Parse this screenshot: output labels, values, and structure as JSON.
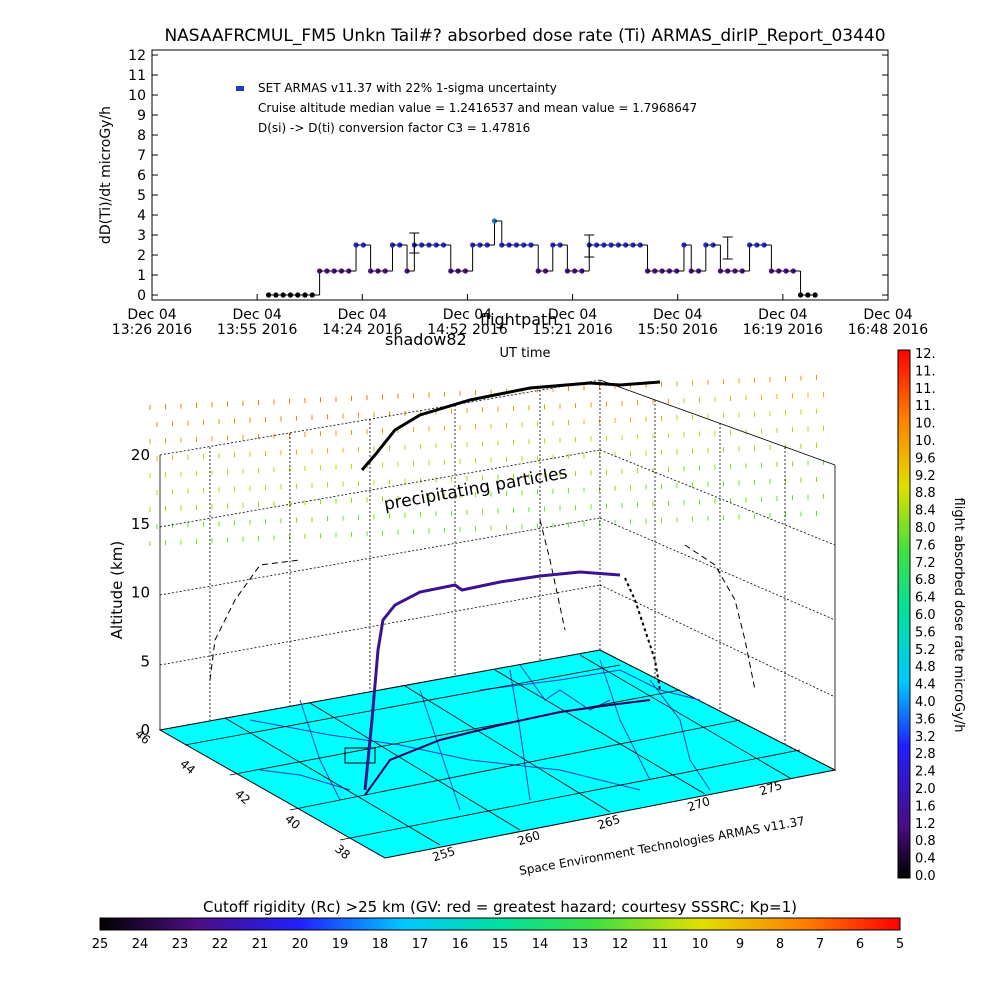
{
  "title": "NASAAFRCMUL_FM5 Unkn Tail#? absorbed dose rate (Ti) ARMAS_dirIP_Report_03440",
  "top_panel": {
    "ylabel": "dD(Ti)/dt microGy/h",
    "xlabel": "UT time",
    "legend": "SET ARMAS v11.37 with 22% 1-sigma uncertainty",
    "note1": "Cruise altitude median value = 1.2416537 and mean value = 1.7968647",
    "note2": "D(si) -> D(ti) conversion factor C3 = 1.47816",
    "overlay_text1": "flightpath",
    "overlay_text2": "shadow82"
  },
  "bottom_panel": {
    "ylabel": "Altitude (km)",
    "precip_label": "precipitating particles",
    "credit": "Space Environment Technologies ARMAS v11.37",
    "cbar_label": "flight absorbed dose rate microGy/h",
    "rc_label": "Cutoff rigidity (Rc) >25 km (GV: red = greatest hazard; courtesy SSSRC; Kp=1)"
  },
  "colors": {
    "points": "#4b0d82",
    "highlight": "#1e78c8",
    "map": "#00ffff"
  },
  "chart_data": [
    {
      "type": "scatter",
      "title": "NASAAFRCMUL_FM5 Unkn Tail#? absorbed dose rate (Ti) ARMAS_dirIP_Report_03440",
      "xlabel": "UT time",
      "ylabel": "dD(Ti)/dt microGy/h",
      "ylim": [
        0,
        12
      ],
      "yticks": [
        0,
        1,
        2,
        3,
        4,
        5,
        6,
        7,
        8,
        9,
        10,
        11,
        12
      ],
      "xticks": [
        {
          "line1": "Dec 04",
          "line2": "13:26 2016"
        },
        {
          "line1": "Dec 04",
          "line2": "13:55 2016"
        },
        {
          "line1": "Dec 04",
          "line2": "14:24 2016"
        },
        {
          "line1": "Dec 04",
          "line2": "14:52 2016"
        },
        {
          "line1": "Dec 04",
          "line2": "15:21 2016"
        },
        {
          "line1": "Dec 04",
          "line2": "15:50 2016"
        },
        {
          "line1": "Dec 04",
          "line2": "16:19 2016"
        },
        {
          "line1": "Dec 04",
          "line2": "16:48 2016"
        }
      ],
      "xlim_minutes": [
        0,
        202
      ],
      "series": [
        {
          "x_minutes": [
            32,
            34,
            36,
            38,
            40,
            42,
            44,
            46,
            48,
            50,
            52,
            54,
            56,
            58,
            60,
            62,
            64,
            66,
            68,
            70,
            72,
            74,
            76,
            78,
            80,
            82,
            84,
            86,
            88,
            90,
            92,
            94,
            96,
            98,
            100,
            102,
            104,
            106,
            108,
            110,
            112,
            114,
            116,
            118,
            120,
            122,
            124,
            126,
            128,
            130,
            132,
            134,
            136,
            138,
            140,
            142,
            144,
            146,
            148,
            150,
            152,
            154,
            156,
            158,
            160,
            162,
            164,
            166,
            168,
            170,
            172,
            174,
            176,
            178,
            180,
            182
          ],
          "values": [
            0,
            0,
            0,
            0,
            0,
            0,
            0,
            1.2,
            1.2,
            1.2,
            1.2,
            1.2,
            2.5,
            2.5,
            1.2,
            1.2,
            1.2,
            2.5,
            2.5,
            1.2,
            2.5,
            2.5,
            2.5,
            2.5,
            2.5,
            1.2,
            1.2,
            1.2,
            2.5,
            2.5,
            2.5,
            3.7,
            2.5,
            2.5,
            2.5,
            2.5,
            2.5,
            1.2,
            1.2,
            2.5,
            2.5,
            1.2,
            1.2,
            1.2,
            2.5,
            2.5,
            2.5,
            2.5,
            2.5,
            2.5,
            2.5,
            2.5,
            1.2,
            1.2,
            1.2,
            1.2,
            1.2,
            2.5,
            1.2,
            1.2,
            2.5,
            2.5,
            1.2,
            1.2,
            1.2,
            1.2,
            2.5,
            2.5,
            2.5,
            1.2,
            1.2,
            1.2,
            1.2,
            0,
            0,
            0
          ]
        }
      ],
      "error_bars": [
        {
          "x_minutes": 72,
          "value": 2.5,
          "low": 2.1,
          "high": 3.1
        },
        {
          "x_minutes": 120,
          "value": 2.5,
          "low": 1.9,
          "high": 3.0
        },
        {
          "x_minutes": 158,
          "value": 2.5,
          "low": 1.8,
          "high": 2.9
        }
      ],
      "grid": false
    },
    {
      "type": "scatter",
      "ylabel": "Altitude (km)",
      "zticks": [
        0,
        5,
        10,
        15,
        20
      ],
      "lat_ticks": [
        "46",
        "44",
        "42",
        "40",
        "38"
      ],
      "lon_ticks": [
        "255",
        "260",
        "265",
        "270",
        "275"
      ],
      "colorbar": {
        "label": "flight absorbed dose rate microGy/h",
        "ticks": [
          "0.0",
          "0.4",
          "0.8",
          "1.2",
          "1.6",
          "2.0",
          "2.4",
          "2.8",
          "3.2",
          "3.6",
          "4.0",
          "4.4",
          "4.8",
          "5.2",
          "5.6",
          "6.0",
          "6.4",
          "6.8",
          "7.2",
          "7.6",
          "8.0",
          "8.4",
          "8.8",
          "9.2",
          "9.6",
          "10.",
          "10.",
          "11.",
          "11.",
          "11.",
          "12."
        ]
      },
      "rigidity_bar": {
        "label": "Cutoff rigidity (Rc) >25 km (GV: red = greatest hazard; courtesy SSSRC; Kp=1)",
        "ticks": [
          "25",
          "24",
          "23",
          "22",
          "21",
          "20",
          "19",
          "18",
          "17",
          "16",
          "15",
          "14",
          "13",
          "12",
          "11",
          "10",
          "9",
          "8",
          "7",
          "6",
          "5"
        ]
      }
    }
  ]
}
